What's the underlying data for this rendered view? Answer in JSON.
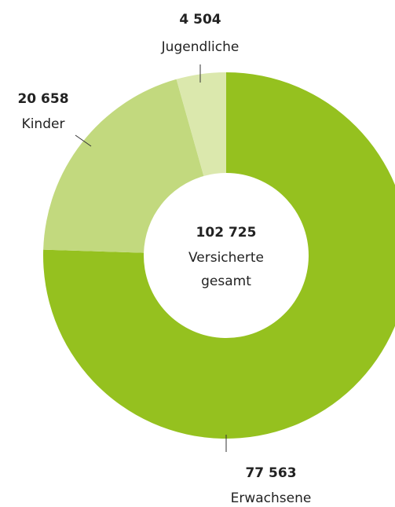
{
  "chart_data": {
    "type": "donut",
    "categories": [
      "Erwachsene",
      "Kinder",
      "Jugendliche"
    ],
    "values": [
      77563,
      20658,
      4504
    ],
    "value_labels": [
      "77 563",
      "20 658",
      "4 504"
    ],
    "colors": [
      "#95c11f",
      "#c2d97e",
      "#dbe8ad"
    ],
    "total": 102725,
    "total_label": "102 725",
    "center_text": [
      "Versicherte",
      "gesamt"
    ]
  }
}
